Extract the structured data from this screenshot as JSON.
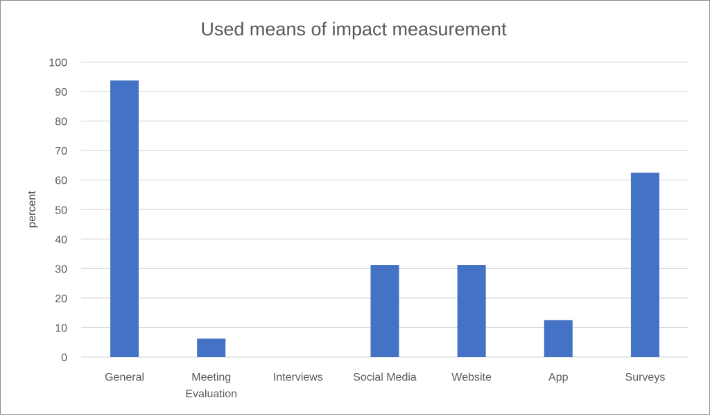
{
  "chart_data": {
    "type": "bar",
    "title": "Used means of impact measurement",
    "xlabel": "",
    "ylabel": "percent",
    "categories": [
      "General",
      "Meeting Evaluation",
      "Interviews",
      "Social Media",
      "Website",
      "App",
      "Surveys"
    ],
    "category_lines": [
      [
        "General"
      ],
      [
        "Meeting",
        "Evaluation"
      ],
      [
        "Interviews"
      ],
      [
        "Social Media"
      ],
      [
        "Website"
      ],
      [
        "App"
      ],
      [
        "Surveys"
      ]
    ],
    "values": [
      93.75,
      6.25,
      0,
      31.25,
      31.25,
      12.5,
      62.5
    ],
    "ylim": [
      0,
      100
    ],
    "yticks": [
      0,
      10,
      20,
      30,
      40,
      50,
      60,
      70,
      80,
      90,
      100
    ],
    "grid": true,
    "legend": "none",
    "colors": {
      "bar": "#4472c4",
      "grid": "#d9d9d9",
      "text": "#595959"
    }
  }
}
